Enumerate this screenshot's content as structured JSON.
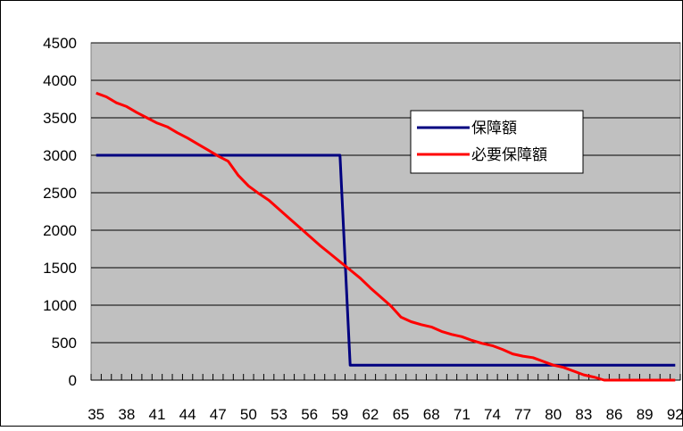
{
  "chart_data": {
    "type": "line",
    "title": "",
    "xlabel": "",
    "ylabel": "",
    "ylim": [
      0,
      4500
    ],
    "yticks": [
      0,
      500,
      1000,
      1500,
      2000,
      2500,
      3000,
      3500,
      4000,
      4500
    ],
    "x_categories": [
      35,
      36,
      37,
      38,
      39,
      40,
      41,
      42,
      43,
      44,
      45,
      46,
      47,
      48,
      49,
      50,
      51,
      52,
      53,
      54,
      55,
      56,
      57,
      58,
      59,
      60,
      61,
      62,
      63,
      64,
      65,
      66,
      67,
      68,
      69,
      70,
      71,
      72,
      73,
      74,
      75,
      76,
      77,
      78,
      79,
      80,
      81,
      82,
      83,
      84,
      85,
      86,
      87,
      88,
      89,
      90,
      91,
      92
    ],
    "x_tick_labels": [
      "35",
      "38",
      "41",
      "44",
      "47",
      "50",
      "53",
      "56",
      "59",
      "62",
      "65",
      "68",
      "71",
      "74",
      "77",
      "80",
      "83",
      "86",
      "89",
      "92"
    ],
    "grid": "horizontal",
    "plot_background": "#c0c0c0",
    "legend_position": "upper-right",
    "series": [
      {
        "name": "保障額",
        "color": "#000080",
        "values": [
          3000,
          3000,
          3000,
          3000,
          3000,
          3000,
          3000,
          3000,
          3000,
          3000,
          3000,
          3000,
          3000,
          3000,
          3000,
          3000,
          3000,
          3000,
          3000,
          3000,
          3000,
          3000,
          3000,
          3000,
          3000,
          200,
          200,
          200,
          200,
          200,
          200,
          200,
          200,
          200,
          200,
          200,
          200,
          200,
          200,
          200,
          200,
          200,
          200,
          200,
          200,
          200,
          200,
          200,
          200,
          200,
          200,
          200,
          200,
          200,
          200,
          200,
          200,
          200
        ]
      },
      {
        "name": "必要保障額",
        "color": "#ff0000",
        "values": [
          3830,
          3780,
          3700,
          3650,
          3570,
          3500,
          3430,
          3380,
          3300,
          3230,
          3150,
          3070,
          2990,
          2920,
          2730,
          2590,
          2490,
          2400,
          2280,
          2160,
          2040,
          1920,
          1800,
          1690,
          1580,
          1470,
          1360,
          1230,
          1110,
          990,
          840,
          780,
          740,
          710,
          650,
          610,
          580,
          530,
          490,
          460,
          410,
          350,
          320,
          300,
          250,
          200,
          170,
          120,
          70,
          40,
          0,
          0,
          0,
          0,
          0,
          0,
          0,
          0
        ]
      }
    ]
  }
}
